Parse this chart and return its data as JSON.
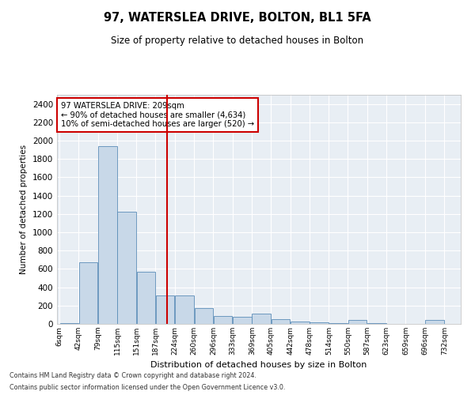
{
  "title": "97, WATERSLEA DRIVE, BOLTON, BL1 5FA",
  "subtitle": "Size of property relative to detached houses in Bolton",
  "xlabel": "Distribution of detached houses by size in Bolton",
  "ylabel": "Number of detached properties",
  "bar_color": "#c8d8e8",
  "bar_edge_color": "#5b8db8",
  "background_color": "#e8eef4",
  "grid_color": "#ffffff",
  "annotation_box_color": "#cc0000",
  "vline_color": "#cc0000",
  "vline_x": 209,
  "annotation_title": "97 WATERSLEA DRIVE: 209sqm",
  "annotation_line1": "← 90% of detached houses are smaller (4,634)",
  "annotation_line2": "10% of semi-detached houses are larger (520) →",
  "footer1": "Contains HM Land Registry data © Crown copyright and database right 2024.",
  "footer2": "Contains public sector information licensed under the Open Government Licence v3.0.",
  "bin_edges": [
    6,
    42,
    79,
    115,
    151,
    187,
    224,
    260,
    296,
    333,
    369,
    405,
    442,
    478,
    514,
    550,
    587,
    623,
    659,
    696,
    732
  ],
  "bar_heights": [
    5,
    670,
    1940,
    1220,
    570,
    310,
    310,
    175,
    90,
    75,
    110,
    50,
    30,
    15,
    5,
    40,
    5,
    2,
    2,
    40
  ],
  "ylim": [
    0,
    2500
  ],
  "yticks": [
    0,
    200,
    400,
    600,
    800,
    1000,
    1200,
    1400,
    1600,
    1800,
    2000,
    2200,
    2400
  ],
  "tick_labels": [
    "6sqm",
    "42sqm",
    "79sqm",
    "115sqm",
    "151sqm",
    "187sqm",
    "224sqm",
    "260sqm",
    "296sqm",
    "333sqm",
    "369sqm",
    "405sqm",
    "442sqm",
    "478sqm",
    "514sqm",
    "550sqm",
    "587sqm",
    "623sqm",
    "659sqm",
    "696sqm",
    "732sqm"
  ]
}
